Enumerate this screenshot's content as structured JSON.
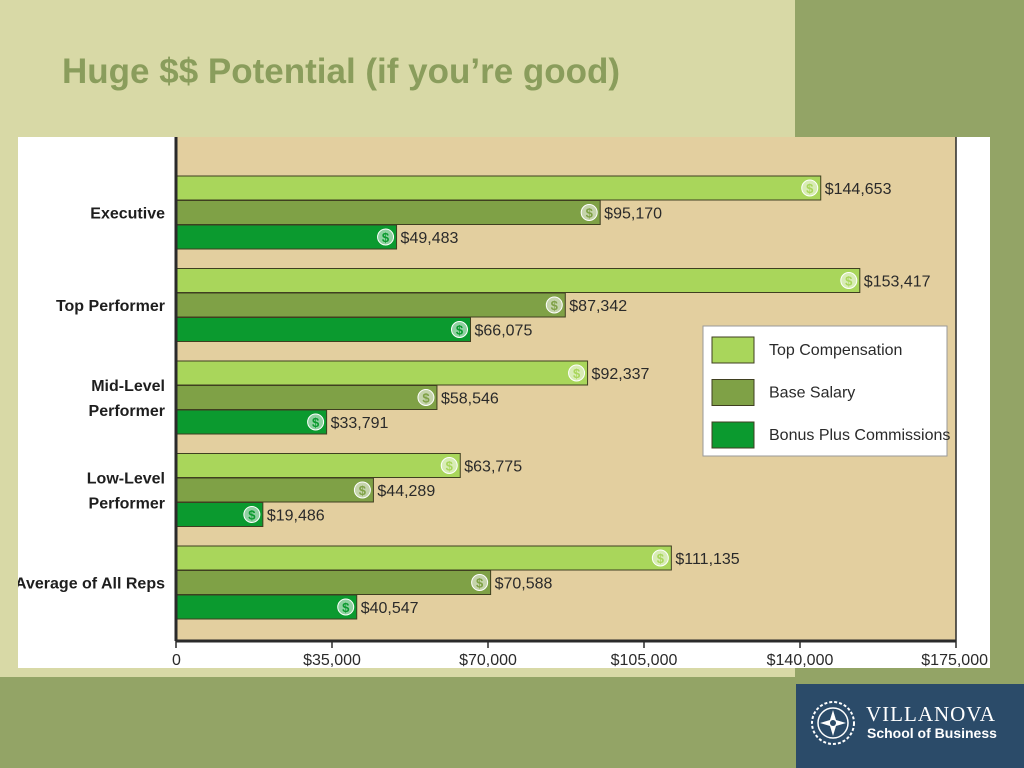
{
  "slide": {
    "title": "Huge $$ Potential (if you’re good)"
  },
  "logo": {
    "name": "VILLANOVA",
    "school": "School of Business"
  },
  "colors": {
    "slide_background": "#d8d9a6",
    "side_band": "#93a466",
    "title": "#8a9d5c",
    "plot_background": "#e3cf9f",
    "logo_background": "#2b4b69"
  },
  "chart_data": {
    "type": "bar",
    "orientation": "horizontal",
    "categories": [
      "Executive",
      "Top Performer",
      "Mid-Level Performer",
      "Low-Level Performer",
      "Average of All Reps"
    ],
    "category_lines": [
      [
        "Executive"
      ],
      [
        "Top Performer"
      ],
      [
        "Mid-Level",
        "Performer"
      ],
      [
        "Low-Level",
        "Performer"
      ],
      [
        "Average of All Reps"
      ]
    ],
    "series": [
      {
        "name": "Top Compensation",
        "color": "#a9d65b",
        "values": [
          144653,
          153417,
          92337,
          63775,
          111135
        ],
        "labels": [
          "$144,653",
          "$153,417",
          "$92,337",
          "$63,775",
          "$111,135"
        ]
      },
      {
        "name": "Base Salary",
        "color": "#7fa146",
        "values": [
          95170,
          87342,
          58546,
          44289,
          70588
        ],
        "labels": [
          "$95,170",
          "$87,342",
          "$58,546",
          "$44,289",
          "$70,588"
        ]
      },
      {
        "name": "Bonus Plus Commissions",
        "color": "#0b9a2f",
        "values": [
          49483,
          66075,
          33791,
          19486,
          40547
        ],
        "labels": [
          "$49,483",
          "$66,075",
          "$33,791",
          "$19,486",
          "$40,547"
        ]
      }
    ],
    "x_ticks": [
      0,
      35000,
      70000,
      105000,
      140000,
      175000
    ],
    "x_tick_labels": [
      "0",
      "$35,000",
      "$70,000",
      "$105,000",
      "$140,000",
      "$175,000"
    ],
    "xlim": [
      0,
      175000
    ],
    "bar_marker_glyph": "$",
    "legend_position": "right",
    "grid": false,
    "title": "",
    "xlabel": "",
    "ylabel": ""
  }
}
